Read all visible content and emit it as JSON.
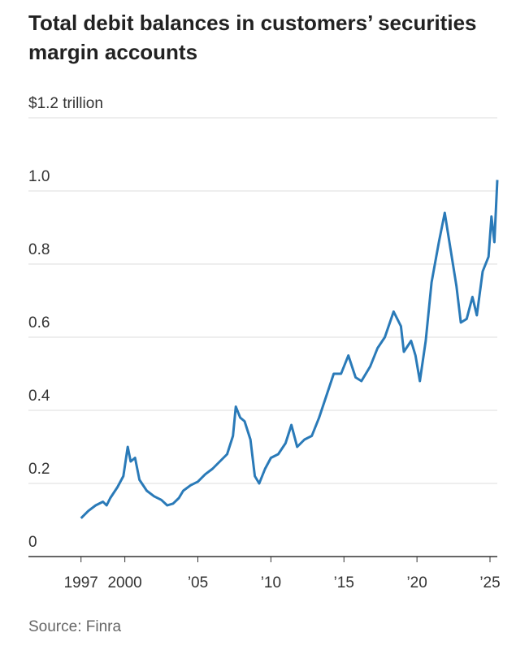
{
  "chart_data": {
    "type": "line",
    "title": "Total debit balances in customers’ securities margin accounts",
    "source": "Source: Finra",
    "x": [
      1997.0,
      1997.5,
      1998.0,
      1998.5,
      1998.75,
      1999.0,
      1999.5,
      1999.9,
      2000.2,
      2000.4,
      2000.7,
      2001.0,
      2001.5,
      2002.0,
      2002.5,
      2002.9,
      2003.3,
      2003.7,
      2004.0,
      2004.5,
      2005.0,
      2005.5,
      2006.0,
      2006.5,
      2007.0,
      2007.4,
      2007.6,
      2007.9,
      2008.2,
      2008.6,
      2008.9,
      2009.2,
      2009.6,
      2010.0,
      2010.5,
      2011.0,
      2011.4,
      2011.8,
      2012.3,
      2012.8,
      2013.3,
      2013.8,
      2014.3,
      2014.8,
      2015.3,
      2015.8,
      2016.2,
      2016.8,
      2017.3,
      2017.8,
      2018.4,
      2018.9,
      2019.1,
      2019.6,
      2019.9,
      2020.2,
      2020.6,
      2021.0,
      2021.5,
      2021.9,
      2022.3,
      2022.7,
      2023.0,
      2023.4,
      2023.8,
      2024.1,
      2024.5,
      2024.9,
      2025.1,
      2025.3,
      2025.5
    ],
    "series": [
      {
        "name": "Total debit balances",
        "color": "#2a7ab8",
        "values": [
          0.105,
          0.125,
          0.14,
          0.15,
          0.14,
          0.16,
          0.19,
          0.22,
          0.3,
          0.26,
          0.27,
          0.21,
          0.18,
          0.165,
          0.155,
          0.14,
          0.145,
          0.16,
          0.18,
          0.195,
          0.205,
          0.225,
          0.24,
          0.26,
          0.28,
          0.33,
          0.41,
          0.38,
          0.37,
          0.32,
          0.22,
          0.2,
          0.24,
          0.27,
          0.28,
          0.31,
          0.36,
          0.3,
          0.32,
          0.33,
          0.38,
          0.44,
          0.5,
          0.5,
          0.55,
          0.49,
          0.48,
          0.52,
          0.57,
          0.6,
          0.67,
          0.63,
          0.56,
          0.59,
          0.55,
          0.48,
          0.59,
          0.75,
          0.86,
          0.94,
          0.84,
          0.74,
          0.64,
          0.65,
          0.71,
          0.66,
          0.78,
          0.82,
          0.93,
          0.86,
          1.03
        ]
      }
    ],
    "xlim": [
      1993.4,
      2025.5
    ],
    "xticks": [
      1997,
      2000,
      {
        "value": 2005,
        "label": "’05"
      },
      {
        "value": 2010,
        "label": "’10"
      },
      {
        "value": 2015,
        "label": "’15"
      },
      {
        "value": 2020,
        "label": "’20"
      },
      {
        "value": 2025,
        "label": "’25"
      }
    ],
    "ylim": [
      0,
      1.2
    ],
    "yticks": [
      0,
      0.2,
      0.4,
      0.6,
      0.8,
      {
        "value": 1,
        "label": "1.0"
      },
      {
        "value": 1.2,
        "label": "$1.2 trillion"
      }
    ],
    "grid": true
  }
}
